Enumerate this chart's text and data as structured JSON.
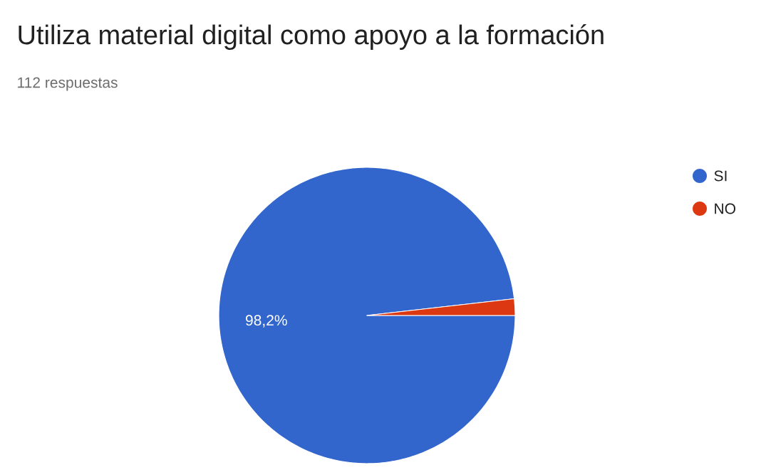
{
  "chart_data": {
    "type": "pie",
    "title": "Utiliza material digital como apoyo a la formación",
    "subtitle": "112 respuestas",
    "categories": [
      "SI",
      "NO"
    ],
    "values": [
      98.2,
      1.8
    ],
    "colors": [
      "#3366cc",
      "#dc3912"
    ],
    "value_labels": [
      "98,2%",
      null
    ],
    "legend": "right"
  }
}
